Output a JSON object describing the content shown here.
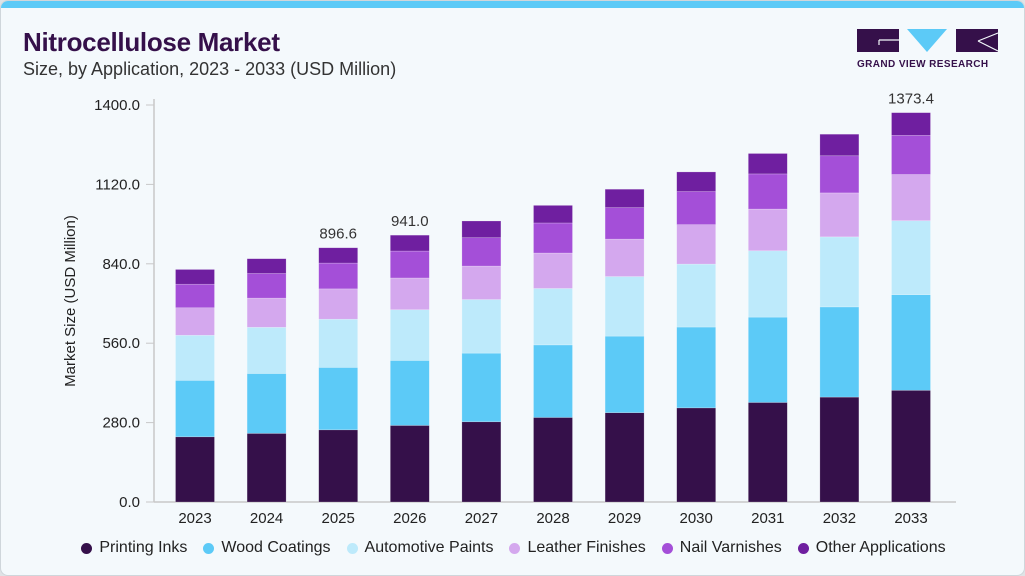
{
  "header": {
    "title": "Nitrocellulose Market",
    "subtitle": "Size, by Application, 2023 - 2033 (USD Million)"
  },
  "logo": {
    "text": "GRAND VIEW RESEARCH"
  },
  "colors": {
    "accent": "#5ccaf7",
    "title": "#35104a"
  },
  "chart_data": {
    "type": "bar",
    "stacked": true,
    "title": "Nitrocellulose Market",
    "subtitle": "Size, by Application, 2023 - 2033 (USD Million)",
    "xlabel": "",
    "ylabel": "Market Size (USD Million)",
    "ylim": [
      0,
      1400
    ],
    "yticks": [
      0,
      280,
      560,
      840,
      1120,
      1400
    ],
    "ytick_labels": [
      "0.0",
      "280.0",
      "560.0",
      "840.0",
      "1120.0",
      "1400.0"
    ],
    "grid": false,
    "legend_position": "bottom",
    "categories": [
      "2023",
      "2024",
      "2025",
      "2026",
      "2027",
      "2028",
      "2029",
      "2030",
      "2031",
      "2032",
      "2033"
    ],
    "series": [
      {
        "name": "Printing Inks",
        "color": "#35104a",
        "values": [
          230,
          242,
          254.6,
          270,
          283,
          298,
          315,
          332,
          351,
          370,
          394
        ]
      },
      {
        "name": "Wood Coatings",
        "color": "#5ccaf7",
        "values": [
          199,
          211,
          220,
          229,
          242,
          256,
          270,
          285,
          301,
          318,
          337
        ]
      },
      {
        "name": "Automotive Paints",
        "color": "#bdeafb",
        "values": [
          159,
          163,
          170,
          179,
          189,
          199,
          210,
          222,
          234,
          247,
          261
        ]
      },
      {
        "name": "Leather Finishes",
        "color": "#d4a8ee",
        "values": [
          97,
          103,
          107,
          112,
          118,
          125,
          132,
          139,
          147,
          155,
          163
        ]
      },
      {
        "name": "Nail Varnishes",
        "color": "#a44fd8",
        "values": [
          83,
          87,
          91,
          95,
          100,
          106,
          111,
          117,
          124,
          131,
          138
        ]
      },
      {
        "name": "Other Applications",
        "color": "#6f1fa0",
        "values": [
          52,
          52,
          54,
          56,
          59,
          62,
          65,
          69,
          72,
          76,
          80
        ]
      }
    ],
    "annotations": [
      {
        "category": "2025",
        "text": "896.6"
      },
      {
        "category": "2026",
        "text": "941.0"
      },
      {
        "category": "2033",
        "text": "1373.4"
      }
    ]
  }
}
